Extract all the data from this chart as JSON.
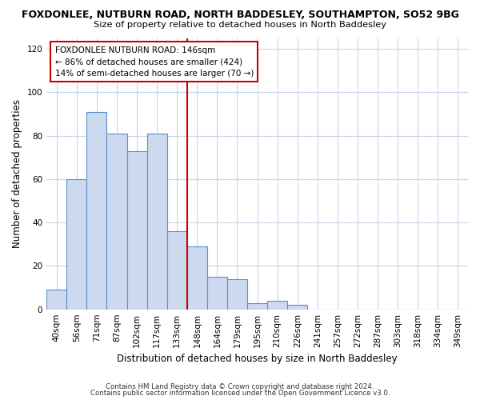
{
  "title1": "FOXDONLEE, NUTBURN ROAD, NORTH BADDESLEY, SOUTHAMPTON, SO52 9BG",
  "title2": "Size of property relative to detached houses in North Baddesley",
  "xlabel": "Distribution of detached houses by size in North Baddesley",
  "ylabel": "Number of detached properties",
  "categories": [
    "40sqm",
    "56sqm",
    "71sqm",
    "87sqm",
    "102sqm",
    "117sqm",
    "133sqm",
    "148sqm",
    "164sqm",
    "179sqm",
    "195sqm",
    "210sqm",
    "226sqm",
    "241sqm",
    "257sqm",
    "272sqm",
    "287sqm",
    "303sqm",
    "318sqm",
    "334sqm",
    "349sqm"
  ],
  "values": [
    9,
    60,
    91,
    81,
    73,
    81,
    36,
    29,
    15,
    14,
    3,
    4,
    2,
    0,
    0,
    0,
    0,
    0,
    0,
    0,
    0
  ],
  "bar_color": "#ccd9ee",
  "bar_edge_color": "#5b8fcc",
  "vline_color": "#cc0000",
  "vline_x_index": 7,
  "annotation_line1": "FOXDONLEE NUTBURN ROAD: 146sqm",
  "annotation_line2": "← 86% of detached houses are smaller (424)",
  "annotation_line3": "14% of semi-detached houses are larger (70 →)",
  "footer1": "Contains HM Land Registry data © Crown copyright and database right 2024.",
  "footer2": "Contains public sector information licensed under the Open Government Licence v3.0.",
  "ylim": [
    0,
    125
  ],
  "yticks": [
    0,
    20,
    40,
    60,
    80,
    100,
    120
  ],
  "background_color": "#ffffff",
  "plot_background": "#ffffff",
  "grid_color": "#c8d4e8"
}
